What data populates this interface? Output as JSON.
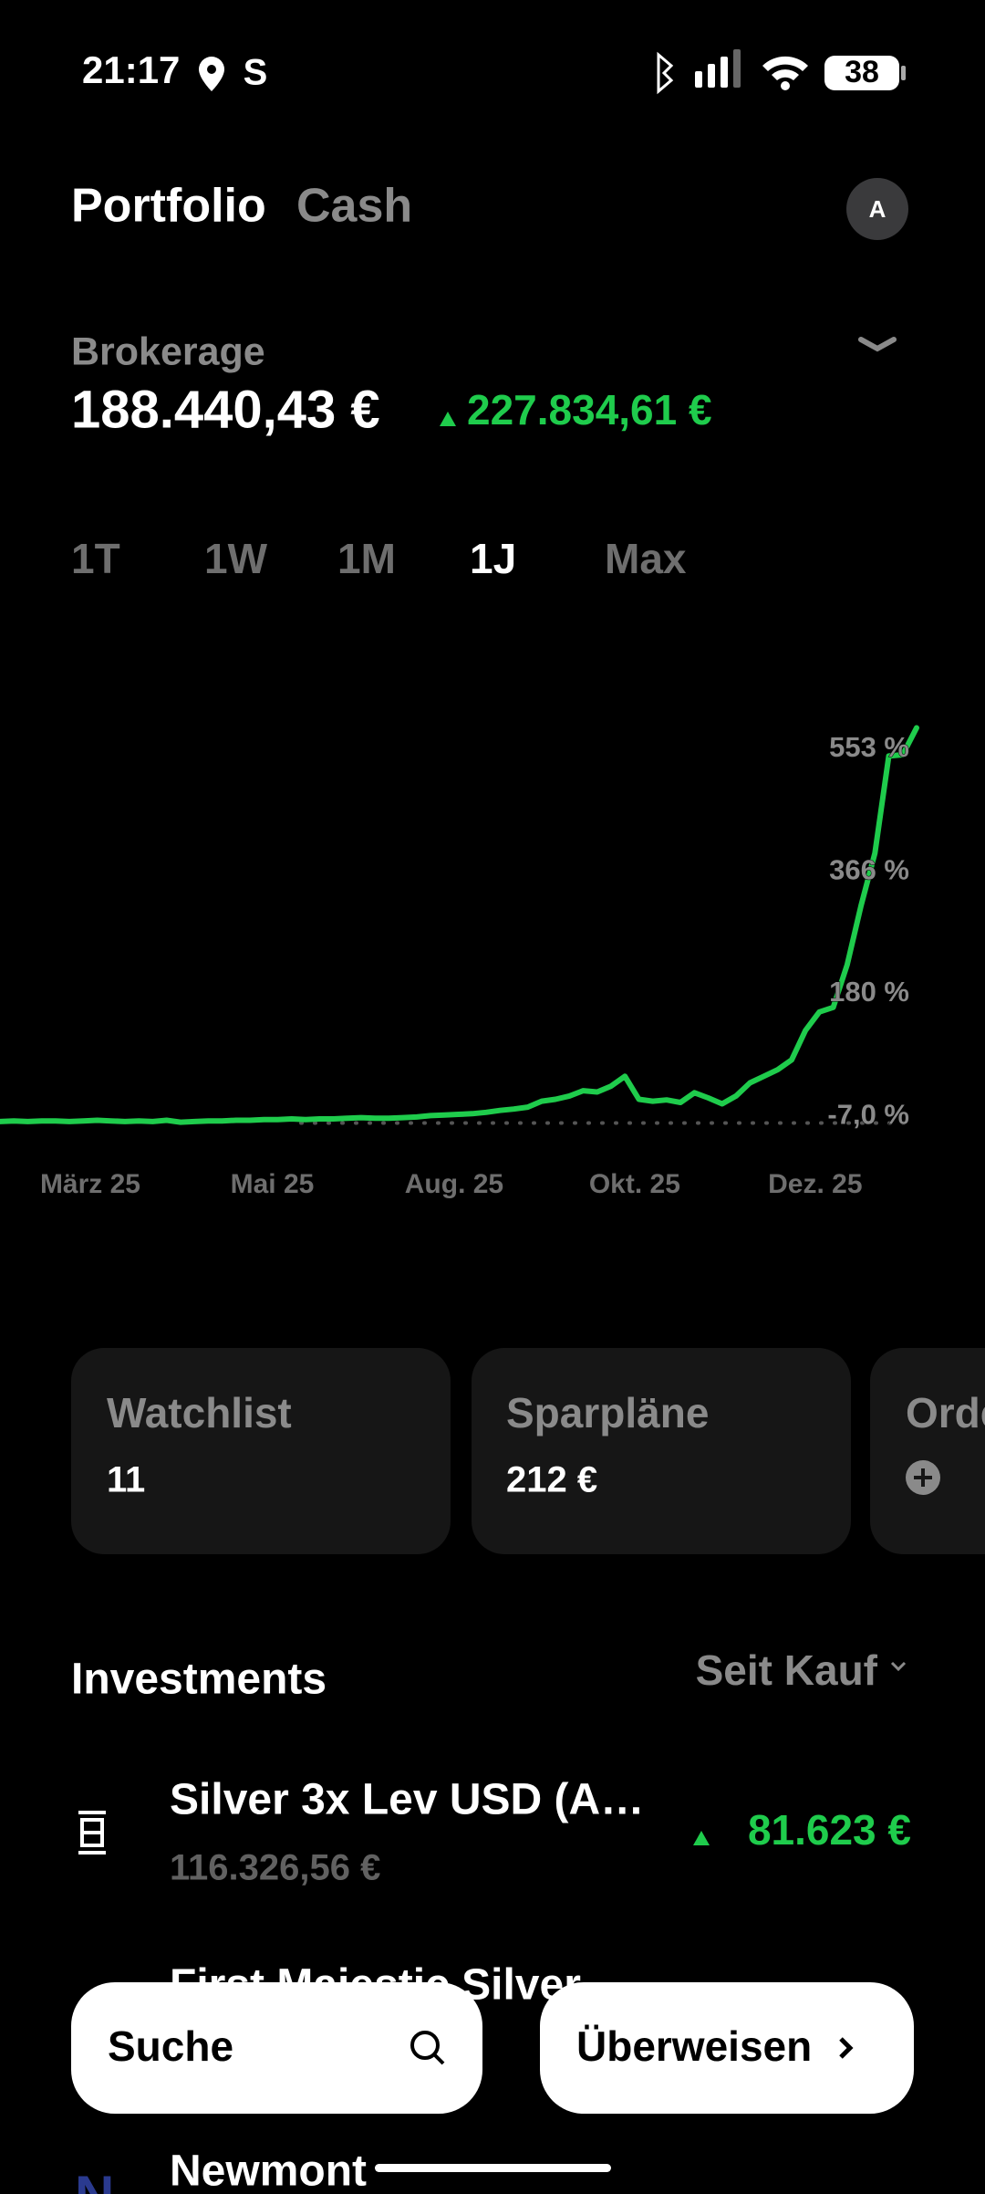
{
  "status_bar": {
    "time": "21:17",
    "battery": "38"
  },
  "header": {
    "tabs": [
      "Portfolio",
      "Cash"
    ],
    "selected": "Portfolio",
    "avatar": "A"
  },
  "account": {
    "name": "Brokerage",
    "value": "188.440,43 €",
    "gain": "227.834,61 €"
  },
  "range_tabs": {
    "items": [
      "1T",
      "1W",
      "1M",
      "1J",
      "Max"
    ],
    "selected": "1J"
  },
  "chart_data": {
    "type": "line",
    "color": "#1fcc4c",
    "values": [
      -9,
      -8,
      -9,
      -8,
      -8,
      -9,
      -8,
      -7,
      -8,
      -9,
      -8,
      -9,
      -7,
      -10,
      -9,
      -8,
      -8,
      -7,
      -7,
      -6,
      -6,
      -5,
      -6,
      -5,
      -5,
      -4,
      -3,
      -4,
      -4,
      -3,
      -2,
      0,
      1,
      2,
      3,
      5,
      8,
      10,
      13,
      22,
      25,
      30,
      38,
      36,
      45,
      60,
      25,
      22,
      24,
      20,
      35,
      27,
      18,
      30,
      50,
      60,
      70,
      85,
      130,
      158,
      165,
      230,
      320,
      400,
      548,
      550,
      591
    ],
    "xlim": [
      0,
      66
    ],
    "xticks": [
      {
        "value": 6.5,
        "label": "März 25"
      },
      {
        "value": 19.6,
        "label": "Mai 25"
      },
      {
        "value": 32.7,
        "label": "Aug. 25"
      },
      {
        "value": 45.7,
        "label": "Okt. 25"
      },
      {
        "value": 58.7,
        "label": "Dez. 25"
      }
    ],
    "ylim": [
      -30,
      600
    ],
    "yticks": [
      {
        "value": 553,
        "label": "553 %"
      },
      {
        "value": 366,
        "label": "366 %"
      },
      {
        "value": 180,
        "label": "180 %"
      },
      {
        "value": -7,
        "label": "-7,0 %"
      }
    ],
    "baseline_tick": 3
  },
  "cards": [
    {
      "title": "Watchlist",
      "value": "11"
    },
    {
      "title": "Sparpläne",
      "value": "212 €"
    },
    {
      "title": "Orders"
    }
  ],
  "investments": {
    "title": "Investments",
    "filter": "Seit Kauf",
    "items": [
      {
        "name": "Silver 3x Lev USD (A…",
        "value": "116.326,56 €",
        "gain": "81.623 €"
      },
      {
        "name": "First Majestic Silver"
      },
      {
        "name": "Newmont"
      }
    ]
  },
  "buttons": {
    "search": "Suche",
    "transfer": "Überweisen"
  }
}
